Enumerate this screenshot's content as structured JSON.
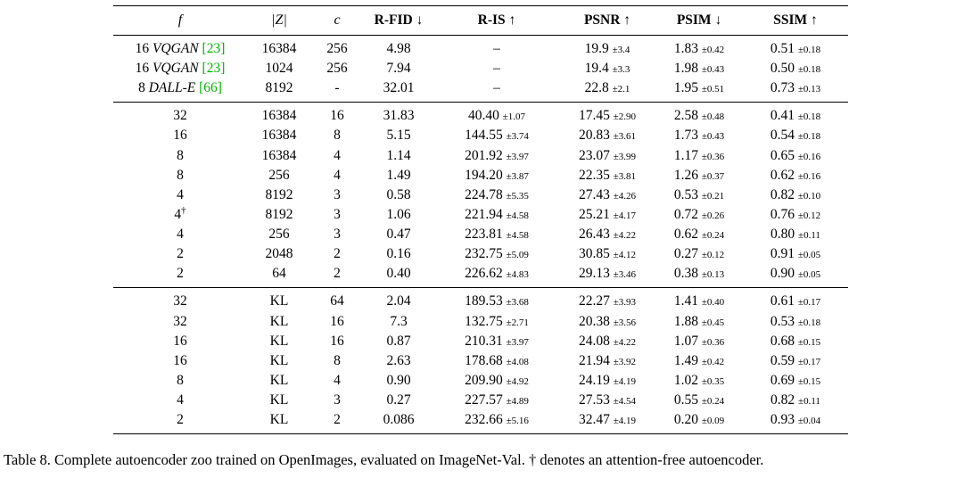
{
  "colors": {
    "citation_green": "#00b400"
  },
  "caption": {
    "text": "Table 8.  Complete autoencoder zoo trained on OpenImages, evaluated on ImageNet-Val. † denotes an attention-free autoencoder."
  },
  "chart_data": {
    "type": "table",
    "title": "Complete autoencoder zoo trained on OpenImages, evaluated on ImageNet-Val",
    "columns": [
      "f",
      "|Z|",
      "c",
      "R-FID ↓",
      "R-IS ↑",
      "PSNR ↑",
      "PSIM ↓",
      "SSIM ↑"
    ]
  },
  "table": {
    "headers": [
      {
        "key": "f",
        "label": "f",
        "style": "math"
      },
      {
        "key": "z",
        "label": "|Z|",
        "style": "math"
      },
      {
        "key": "c",
        "label": "c",
        "style": "math"
      },
      {
        "key": "rfid",
        "label": "R-FID ↓",
        "style": "bold"
      },
      {
        "key": "ris",
        "label": "R-IS ↑",
        "style": "bold"
      },
      {
        "key": "psnr",
        "label": "PSNR ↑",
        "style": "bold"
      },
      {
        "key": "psim",
        "label": "PSIM ↓",
        "style": "bold"
      },
      {
        "key": "ssim",
        "label": "SSIM ↑",
        "style": "bold"
      }
    ],
    "groups": [
      {
        "rows": [
          {
            "f": "16",
            "model": "VQGAN",
            "ref": "[23]",
            "z": "16384",
            "c": "256",
            "rfid": "4.98",
            "ris": [
              "–",
              ""
            ],
            "psnr": [
              "19.9",
              "±3.4"
            ],
            "psim": [
              "1.83",
              "±0.42"
            ],
            "ssim": [
              "0.51",
              "±0.18"
            ]
          },
          {
            "f": "16",
            "model": "VQGAN",
            "ref": "[23]",
            "z": "1024",
            "c": "256",
            "rfid": "7.94",
            "ris": [
              "–",
              ""
            ],
            "psnr": [
              "19.4",
              "±3.3"
            ],
            "psim": [
              "1.98",
              "±0.43"
            ],
            "ssim": [
              "0.50",
              "±0.18"
            ]
          },
          {
            "f": "8",
            "model": "DALL-E",
            "ref": "[66]",
            "z": "8192",
            "c": "-",
            "rfid": "32.01",
            "ris": [
              "–",
              ""
            ],
            "psnr": [
              "22.8",
              "±2.1"
            ],
            "psim": [
              "1.95",
              "±0.51"
            ],
            "ssim": [
              "0.73",
              "±0.13"
            ]
          }
        ]
      },
      {
        "rows": [
          {
            "f": "32",
            "model": "",
            "ref": "",
            "z": "16384",
            "c": "16",
            "rfid": "31.83",
            "ris": [
              "40.40",
              "±1.07"
            ],
            "psnr": [
              "17.45",
              "±2.90"
            ],
            "psim": [
              "2.58",
              "±0.48"
            ],
            "ssim": [
              "0.41",
              "±0.18"
            ]
          },
          {
            "f": "16",
            "model": "",
            "ref": "",
            "z": "16384",
            "c": "8",
            "rfid": "5.15",
            "ris": [
              "144.55",
              "±3.74"
            ],
            "psnr": [
              "20.83",
              "±3.61"
            ],
            "psim": [
              "1.73",
              "±0.43"
            ],
            "ssim": [
              "0.54",
              "±0.18"
            ]
          },
          {
            "f": "8",
            "model": "",
            "ref": "",
            "z": "16384",
            "c": "4",
            "rfid": "1.14",
            "ris": [
              "201.92",
              "±3.97"
            ],
            "psnr": [
              "23.07",
              "±3.99"
            ],
            "psim": [
              "1.17",
              "±0.36"
            ],
            "ssim": [
              "0.65",
              "±0.16"
            ]
          },
          {
            "f": "8",
            "model": "",
            "ref": "",
            "z": "256",
            "c": "4",
            "rfid": "1.49",
            "ris": [
              "194.20",
              "±3.87"
            ],
            "psnr": [
              "22.35",
              "±3.81"
            ],
            "psim": [
              "1.26",
              "±0.37"
            ],
            "ssim": [
              "0.62",
              "±0.16"
            ]
          },
          {
            "f": "4",
            "model": "",
            "ref": "",
            "z": "8192",
            "c": "3",
            "rfid": "0.58",
            "ris": [
              "224.78",
              "±5.35"
            ],
            "psnr": [
              "27.43",
              "±4.26"
            ],
            "psim": [
              "0.53",
              "±0.21"
            ],
            "ssim": [
              "0.82",
              "±0.10"
            ]
          },
          {
            "f": "4†",
            "model": "",
            "ref": "",
            "z": "8192",
            "c": "3",
            "rfid": "1.06",
            "ris": [
              "221.94",
              "±4.58"
            ],
            "psnr": [
              "25.21",
              "±4.17"
            ],
            "psim": [
              "0.72",
              "±0.26"
            ],
            "ssim": [
              "0.76",
              "±0.12"
            ]
          },
          {
            "f": "4",
            "model": "",
            "ref": "",
            "z": "256",
            "c": "3",
            "rfid": "0.47",
            "ris": [
              "223.81",
              "±4.58"
            ],
            "psnr": [
              "26.43",
              "±4.22"
            ],
            "psim": [
              "0.62",
              "±0.24"
            ],
            "ssim": [
              "0.80",
              "±0.11"
            ]
          },
          {
            "f": "2",
            "model": "",
            "ref": "",
            "z": "2048",
            "c": "2",
            "rfid": "0.16",
            "ris": [
              "232.75",
              "±5.09"
            ],
            "psnr": [
              "30.85",
              "±4.12"
            ],
            "psim": [
              "0.27",
              "±0.12"
            ],
            "ssim": [
              "0.91",
              "±0.05"
            ]
          },
          {
            "f": "2",
            "model": "",
            "ref": "",
            "z": "64",
            "c": "2",
            "rfid": "0.40",
            "ris": [
              "226.62",
              "±4.83"
            ],
            "psnr": [
              "29.13",
              "±3.46"
            ],
            "psim": [
              "0.38",
              "±0.13"
            ],
            "ssim": [
              "0.90",
              "±0.05"
            ]
          }
        ]
      },
      {
        "rows": [
          {
            "f": "32",
            "model": "",
            "ref": "",
            "z": "KL",
            "c": "64",
            "rfid": "2.04",
            "ris": [
              "189.53",
              "±3.68"
            ],
            "psnr": [
              "22.27",
              "±3.93"
            ],
            "psim": [
              "1.41",
              "±0.40"
            ],
            "ssim": [
              "0.61",
              "±0.17"
            ]
          },
          {
            "f": "32",
            "model": "",
            "ref": "",
            "z": "KL",
            "c": "16",
            "rfid": "7.3",
            "ris": [
              "132.75",
              "±2.71"
            ],
            "psnr": [
              "20.38",
              "±3.56"
            ],
            "psim": [
              "1.88",
              "±0.45"
            ],
            "ssim": [
              "0.53",
              "±0.18"
            ]
          },
          {
            "f": "16",
            "model": "",
            "ref": "",
            "z": "KL",
            "c": "16",
            "rfid": "0.87",
            "ris": [
              "210.31",
              "±3.97"
            ],
            "psnr": [
              "24.08",
              "±4.22"
            ],
            "psim": [
              "1.07",
              "±0.36"
            ],
            "ssim": [
              "0.68",
              "±0.15"
            ]
          },
          {
            "f": "16",
            "model": "",
            "ref": "",
            "z": "KL",
            "c": "8",
            "rfid": "2.63",
            "ris": [
              "178.68",
              "±4.08"
            ],
            "psnr": [
              "21.94",
              "±3.92"
            ],
            "psim": [
              "1.49",
              "±0.42"
            ],
            "ssim": [
              "0.59",
              "±0.17"
            ]
          },
          {
            "f": "8",
            "model": "",
            "ref": "",
            "z": "KL",
            "c": "4",
            "rfid": "0.90",
            "ris": [
              "209.90",
              "±4.92"
            ],
            "psnr": [
              "24.19",
              "±4.19"
            ],
            "psim": [
              "1.02",
              "±0.35"
            ],
            "ssim": [
              "0.69",
              "±0.15"
            ]
          },
          {
            "f": "4",
            "model": "",
            "ref": "",
            "z": "KL",
            "c": "3",
            "rfid": "0.27",
            "ris": [
              "227.57",
              "±4.89"
            ],
            "psnr": [
              "27.53",
              "±4.54"
            ],
            "psim": [
              "0.55",
              "±0.24"
            ],
            "ssim": [
              "0.82",
              "±0.11"
            ]
          },
          {
            "f": "2",
            "model": "",
            "ref": "",
            "z": "KL",
            "c": "2",
            "rfid": "0.086",
            "ris": [
              "232.66",
              "±5.16"
            ],
            "psnr": [
              "32.47",
              "±4.19"
            ],
            "psim": [
              "0.20",
              "±0.09"
            ],
            "ssim": [
              "0.93",
              "±0.04"
            ]
          }
        ]
      }
    ]
  }
}
